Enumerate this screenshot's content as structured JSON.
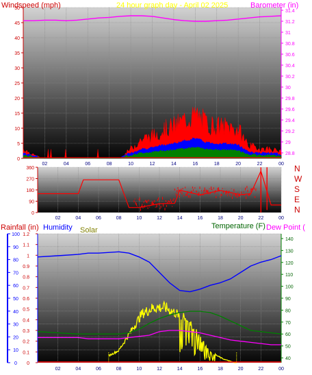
{
  "panel1": {
    "title_left": "Windspeed (mph)",
    "title_center": "24 hour graph day - April 02 2025",
    "title_right": "Barometer (in)",
    "left_ticks": [
      "0",
      "5",
      "10",
      "15",
      "20",
      "25",
      "30",
      "35",
      "40",
      "45",
      "50"
    ],
    "right_ticks": [
      "28.8",
      "29",
      "29.2",
      "29.4",
      "29.6",
      "29.8",
      "30",
      "30.2",
      "30.4",
      "30.6",
      "30.8",
      "31",
      "31.2",
      "31.4"
    ],
    "x_ticks": [
      "02",
      "04",
      "06",
      "08",
      "10",
      "12",
      "14",
      "16",
      "18",
      "20",
      "22",
      "00"
    ]
  },
  "panel2": {
    "left_ticks": [
      "0",
      "90",
      "180",
      "270",
      "360"
    ],
    "compass": [
      "N",
      "W",
      "S",
      "E",
      "N"
    ],
    "x_ticks": [
      "02",
      "04",
      "06",
      "08",
      "10",
      "12",
      "14",
      "16",
      "18",
      "20",
      "22",
      "00"
    ]
  },
  "panel3": {
    "title_rain": "Rainfall (in)",
    "title_humidity": "Humidity",
    "title_solar": "Solar",
    "title_temp": "Temperature (F)",
    "title_dew": "Dew Point (",
    "rain_ticks": [
      "0",
      "0.1",
      "0.2",
      "0.3",
      "0.4",
      "0.5",
      "0.6",
      "0.7",
      "0.8",
      "0.9",
      "1",
      "1.1",
      "1.2"
    ],
    "hum_ticks": [
      "0",
      "10",
      "20",
      "30",
      "40",
      "50",
      "60",
      "70",
      "80",
      "90",
      "100"
    ],
    "temp_ticks": [
      "40",
      "50",
      "60",
      "70",
      "80",
      "90",
      "100",
      "110",
      "120",
      "130",
      "140"
    ],
    "x_ticks": [
      "02",
      "04",
      "06",
      "08",
      "10",
      "12",
      "14",
      "16",
      "18",
      "20",
      "22",
      "00"
    ]
  },
  "colors": {
    "wind": "#ff0000",
    "wind_avg": "#0000ff",
    "wind_low": "#008000",
    "barometer": "#ff00ff",
    "direction": "#ff0000",
    "humidity": "#0000ff",
    "solar": "#ffff00",
    "temperature": "#008000",
    "dew_point": "#ff00ff",
    "rain": "#ff0000"
  },
  "chart_data": [
    {
      "type": "area",
      "title": "24 hour graph day - April 02 2025",
      "ylabel": "Windspeed (mph)",
      "ylim": [
        0,
        50
      ],
      "y2label": "Barometer (in)",
      "y2lim": [
        28.7,
        31.45
      ],
      "x": [
        "00",
        "01",
        "02",
        "03",
        "04",
        "05",
        "06",
        "07",
        "08",
        "09",
        "10",
        "11",
        "12",
        "13",
        "14",
        "15",
        "16",
        "17",
        "18",
        "19",
        "20",
        "21",
        "22",
        "23",
        "24"
      ],
      "series": [
        {
          "name": "Windspeed (mph)",
          "values": [
            3,
            1,
            0,
            0,
            0,
            0,
            0,
            0,
            0,
            0,
            3,
            6,
            7,
            9,
            10,
            12,
            14,
            11,
            10,
            10,
            9,
            4,
            3,
            3,
            2
          ]
        },
        {
          "name": "Barometer (in)",
          "axis": "right",
          "values": [
            31.21,
            31.21,
            31.22,
            31.22,
            31.21,
            31.22,
            31.24,
            31.26,
            31.27,
            31.29,
            31.3,
            31.3,
            31.29,
            31.26,
            31.23,
            31.21,
            31.2,
            31.2,
            31.21,
            31.22,
            31.24,
            31.26,
            31.28,
            31.29,
            31.3
          ]
        }
      ],
      "grid": true
    },
    {
      "type": "line",
      "ylim": [
        0,
        360
      ],
      "x": [
        "00",
        "02",
        "04",
        "04.5",
        "05",
        "07",
        "08",
        "09",
        "10",
        "12",
        "13.5",
        "14",
        "16",
        "18",
        "20",
        "21",
        "22",
        "23",
        "24"
      ],
      "series": [
        {
          "name": "Wind direction",
          "values": [
            150,
            150,
            150,
            260,
            260,
            260,
            260,
            40,
            40,
            90,
            80,
            170,
            160,
            160,
            160,
            150,
            330,
            60,
            60
          ]
        }
      ],
      "grid": true
    },
    {
      "type": "line",
      "ylabel": "Humidity",
      "ylim": [
        0,
        100
      ],
      "y2label": "Temperature (F)",
      "y2lim": [
        36,
        144
      ],
      "x": [
        "00",
        "02",
        "04",
        "05",
        "06",
        "08",
        "09",
        "10",
        "11",
        "12",
        "13",
        "14",
        "15",
        "16",
        "17",
        "18",
        "19",
        "20",
        "21",
        "22",
        "23",
        "24"
      ],
      "series": [
        {
          "name": "Humidity",
          "values": [
            82,
            83,
            84,
            85,
            85,
            86,
            85,
            82,
            78,
            70,
            62,
            56,
            55,
            57,
            60,
            62,
            65,
            70,
            75,
            78,
            80,
            83
          ]
        },
        {
          "name": "Temperature (F)",
          "axis": "right",
          "values": [
            62,
            61,
            60,
            60,
            60,
            60,
            61,
            64,
            69,
            73,
            76,
            78,
            79,
            79,
            78,
            75,
            71,
            67,
            63,
            62,
            61,
            60
          ]
        },
        {
          "name": "Dew Point",
          "axis": "right",
          "values": [
            57,
            57,
            57,
            56,
            56,
            56,
            57,
            58,
            59,
            62,
            63,
            63,
            62,
            61,
            59,
            57,
            55,
            54,
            53,
            52,
            51,
            51
          ]
        },
        {
          "name": "Solar",
          "values": [
            0,
            0,
            0,
            0,
            0,
            0,
            5,
            10,
            25,
            40,
            45,
            45,
            40,
            35,
            20,
            8,
            3,
            0,
            0,
            0,
            0,
            0
          ]
        },
        {
          "name": "Rainfall (in)",
          "values": [
            0,
            0,
            0,
            0,
            0,
            0,
            0,
            0,
            0,
            0,
            0,
            0,
            0,
            0,
            0,
            0,
            0,
            0,
            0,
            0,
            0,
            0
          ]
        }
      ],
      "grid": true
    }
  ]
}
